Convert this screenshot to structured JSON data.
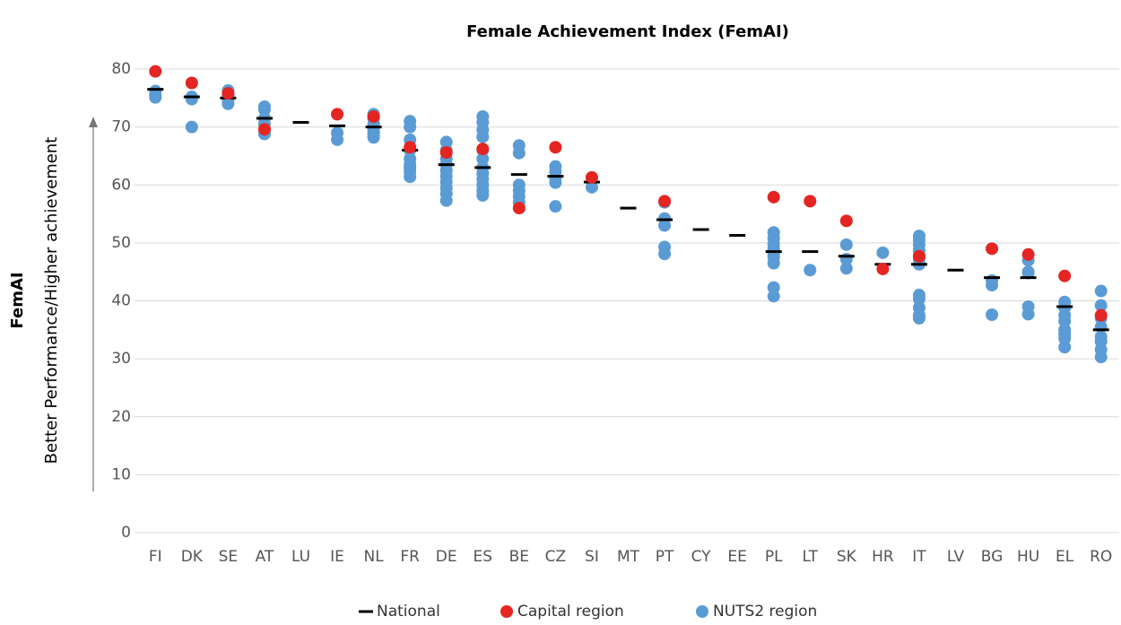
{
  "chart_data": {
    "type": "strip",
    "title": "Female Achievement Index (FemAI)",
    "ylabel": "FemAI",
    "ylabel_note": "Better Performance/Higher achievement",
    "categories": [
      "FI",
      "DK",
      "SE",
      "AT",
      "LU",
      "IE",
      "NL",
      "FR",
      "DE",
      "ES",
      "BE",
      "CZ",
      "SI",
      "MT",
      "PT",
      "CY",
      "EE",
      "PL",
      "LT",
      "SK",
      "HR",
      "IT",
      "LV",
      "BG",
      "HU",
      "EL",
      "RO"
    ],
    "ylim": [
      0,
      80
    ],
    "yticks": [
      0,
      10,
      20,
      30,
      40,
      50,
      60,
      70,
      80
    ],
    "grid": true,
    "legend": "bottom",
    "series": [
      {
        "name": "National",
        "color": "#000000",
        "marker": "dash",
        "values": [
          76.5,
          75.2,
          75,
          71.5,
          70.8,
          70.2,
          70,
          66,
          63.5,
          63,
          61.8,
          61.5,
          60.5,
          56,
          54,
          52.3,
          51.3,
          48.5,
          48.5,
          47.7,
          46.3,
          46.3,
          45.3,
          44,
          44,
          39,
          35
        ]
      },
      {
        "name": "Capital region",
        "color": "#e52521",
        "marker": "circle",
        "values": [
          79.6,
          77.6,
          75.8,
          69.6,
          null,
          72.2,
          71.8,
          66.5,
          65.6,
          66.2,
          56,
          66.5,
          61.3,
          null,
          57.2,
          null,
          null,
          57.9,
          57.2,
          53.8,
          45.5,
          47.7,
          null,
          49,
          48,
          44.3,
          37.5
        ]
      },
      {
        "name": "NUTS2 region",
        "color": "#5b9bd5",
        "marker": "circle",
        "values": [
          [
            76.2,
            75.5,
            75.1
          ],
          [
            75.2,
            74.8,
            70
          ],
          [
            76.3,
            75.5,
            74.6,
            74
          ],
          [
            73.5,
            73,
            71.5,
            70.5,
            69.5,
            68.8
          ],
          [],
          [
            69,
            67.8
          ],
          [
            72.2,
            71.5,
            70.5,
            70,
            69.5,
            69,
            68.5,
            68.2
          ],
          [
            71,
            70,
            67.8,
            66,
            64.5,
            63.5,
            63,
            62.3,
            61.4
          ],
          [
            67.4,
            66,
            64.5,
            63.5,
            62.5,
            61.5,
            60.5,
            59.5,
            58.5,
            57.3
          ],
          [
            71.8,
            70.8,
            69.5,
            68.3,
            66,
            64.5,
            63,
            62,
            61,
            60,
            59,
            58.2
          ],
          [
            66.8,
            65.5,
            60,
            59,
            58,
            57
          ],
          [
            63.2,
            62.3,
            61.2,
            60.4,
            56.3
          ],
          [
            59.6
          ],
          [],
          [
            57,
            54.2,
            53,
            49.3,
            48.1
          ],
          [],
          [],
          [
            51.8,
            50.8,
            49.8,
            49,
            48,
            47.5,
            46.5,
            42.3,
            40.8
          ],
          [
            45.3
          ],
          [
            49.7,
            47.2,
            45.6
          ],
          [
            48.3
          ],
          [
            51.2,
            50.5,
            49.7,
            48.7,
            47.2,
            46.3,
            41,
            40.3,
            38.8,
            37.5,
            37
          ],
          [],
          [
            43.5,
            42.7,
            37.6
          ],
          [
            47,
            45,
            44.8,
            39,
            37.7
          ],
          [
            39.8,
            38.8,
            37.5,
            36.5,
            35,
            34.2,
            33.5,
            32
          ],
          [
            41.7,
            39.2,
            37,
            35.5,
            33.8,
            33,
            31.6,
            30.3
          ]
        ]
      }
    ]
  }
}
